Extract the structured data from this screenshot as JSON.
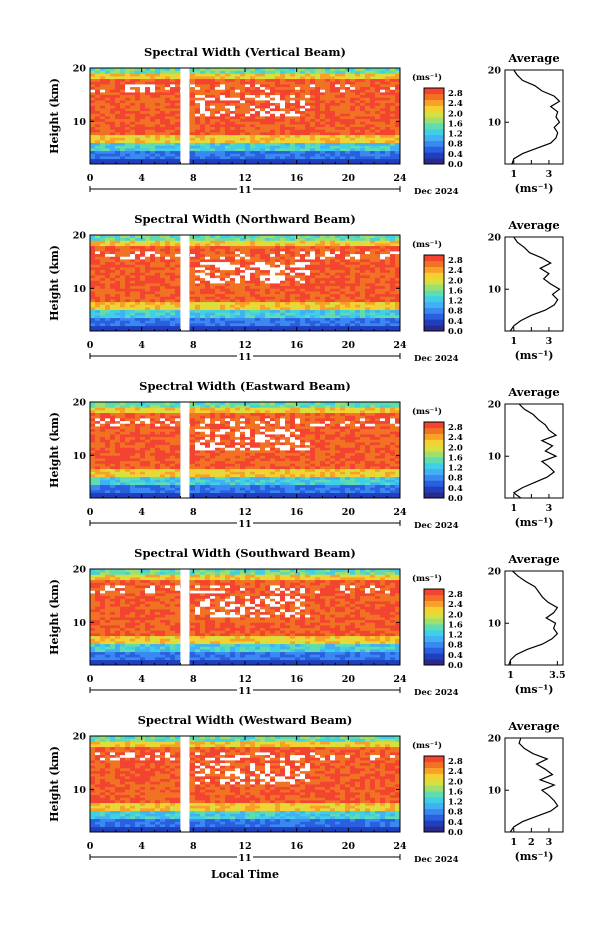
{
  "figure": {
    "xlabel": "Local Time",
    "day_label": "11",
    "date_label": "Dec 2024"
  },
  "colorbar": {
    "unit_label": "(ms⁻¹)",
    "range": [
      0.0,
      3.0
    ],
    "tick_labels": [
      "0.0",
      "0.4",
      "0.8",
      "1.2",
      "1.6",
      "2.0",
      "2.4",
      "2.8"
    ],
    "tick_values": [
      0.0,
      0.4,
      0.8,
      1.2,
      1.6,
      2.0,
      2.4,
      2.8
    ],
    "colors": [
      "#2a2a8c",
      "#1f3fbf",
      "#2a60e0",
      "#3a88f2",
      "#42b0f5",
      "#3fd0e6",
      "#5fdcb0",
      "#9ee070",
      "#d8e040",
      "#f6d030",
      "#f8a028",
      "#f27224",
      "#f24430"
    ]
  },
  "chart_data": [
    {
      "type": "heatmap",
      "title": "Spectral Width (Vertical Beam)",
      "xlabel": "",
      "ylabel": "Height (km)",
      "x_ticks": [
        0,
        4,
        8,
        12,
        16,
        20,
        24
      ],
      "x_range": [
        0,
        24
      ],
      "y_ticks": [
        10,
        20
      ],
      "y_range": [
        2,
        20
      ],
      "gaps_hours": [
        [
          7.0,
          7.7
        ]
      ],
      "average_profile": {
        "title": "Average",
        "xlabel": "(ms⁻¹)",
        "x_ticks": [
          1,
          2,
          3
        ],
        "x_ticks_labeled": [
          1,
          3
        ],
        "x_range": [
          0.5,
          3.8
        ],
        "height_km": [
          2,
          3,
          4,
          5,
          6,
          7,
          8,
          9,
          10,
          11,
          12,
          13,
          14,
          15,
          16,
          17,
          18,
          19,
          20
        ],
        "width_ms": [
          0.9,
          1.0,
          1.5,
          2.3,
          3.1,
          3.4,
          3.5,
          3.3,
          3.6,
          3.4,
          3.5,
          3.1,
          3.6,
          3.3,
          2.6,
          2.2,
          1.5,
          1.2,
          1.0
        ]
      }
    },
    {
      "type": "heatmap",
      "title": "Spectral Width (Northward Beam)",
      "xlabel": "",
      "ylabel": "Height (km)",
      "x_ticks": [
        0,
        4,
        8,
        12,
        16,
        20,
        24
      ],
      "x_range": [
        0,
        24
      ],
      "y_ticks": [
        10,
        20
      ],
      "y_range": [
        2,
        20
      ],
      "gaps_hours": [
        [
          7.0,
          7.7
        ]
      ],
      "average_profile": {
        "title": "Average",
        "xlabel": "(ms⁻¹)",
        "x_ticks": [
          1,
          2,
          3
        ],
        "x_ticks_labeled": [
          1,
          3
        ],
        "x_range": [
          0.5,
          3.8
        ],
        "height_km": [
          2,
          3,
          4,
          5,
          6,
          7,
          8,
          9,
          10,
          11,
          12,
          13,
          14,
          15,
          16,
          17,
          18,
          19,
          20
        ],
        "width_ms": [
          0.8,
          1.0,
          1.4,
          2.0,
          2.8,
          3.3,
          3.5,
          3.2,
          3.6,
          3.1,
          2.7,
          3.0,
          2.5,
          3.1,
          2.6,
          1.9,
          1.6,
          1.2,
          1.0
        ]
      }
    },
    {
      "type": "heatmap",
      "title": "Spectral Width (Eastward Beam)",
      "xlabel": "",
      "ylabel": "Height (km)",
      "x_ticks": [
        0,
        4,
        8,
        12,
        16,
        20,
        24
      ],
      "x_range": [
        0,
        24
      ],
      "y_ticks": [
        10,
        20
      ],
      "y_range": [
        2,
        20
      ],
      "gaps_hours": [
        [
          7.0,
          7.7
        ]
      ],
      "average_profile": {
        "title": "Average",
        "xlabel": "(ms⁻¹)",
        "x_ticks": [
          1,
          2,
          3
        ],
        "x_ticks_labeled": [
          1,
          3
        ],
        "x_range": [
          0.5,
          3.8
        ],
        "height_km": [
          2,
          3,
          4,
          5,
          6,
          7,
          8,
          9,
          10,
          11,
          12,
          13,
          14,
          15,
          16,
          17,
          18,
          19,
          20
        ],
        "width_ms": [
          1.4,
          1.0,
          1.5,
          2.2,
          2.9,
          3.3,
          3.0,
          2.6,
          3.4,
          2.8,
          3.2,
          2.6,
          3.4,
          3.0,
          2.8,
          2.4,
          2.1,
          1.6,
          1.3
        ]
      }
    },
    {
      "type": "heatmap",
      "title": "Spectral Width (Southward Beam)",
      "xlabel": "",
      "ylabel": "Height (km)",
      "x_ticks": [
        0,
        4,
        8,
        12,
        16,
        20,
        24
      ],
      "x_range": [
        0,
        24
      ],
      "y_ticks": [
        10,
        20
      ],
      "y_range": [
        2,
        20
      ],
      "gaps_hours": [
        [
          7.0,
          7.7
        ]
      ],
      "average_profile": {
        "title": "Average",
        "xlabel": "(ms⁻¹)",
        "x_ticks": [
          1.0,
          3.5
        ],
        "x_ticks_labeled": [
          1.0,
          3.5
        ],
        "x_range": [
          0.7,
          3.8
        ],
        "height_km": [
          2,
          3,
          4,
          5,
          6,
          7,
          8,
          9,
          10,
          11,
          12,
          13,
          14,
          15,
          16,
          17,
          18,
          19,
          20
        ],
        "width_ms": [
          0.9,
          1.0,
          1.3,
          1.9,
          2.7,
          3.2,
          3.5,
          3.3,
          3.4,
          2.9,
          3.3,
          3.5,
          3.0,
          2.7,
          2.5,
          2.3,
          1.8,
          1.4,
          1.1
        ]
      }
    },
    {
      "type": "heatmap",
      "title": "Spectral Width (Westward Beam)",
      "xlabel": "Local Time",
      "ylabel": "Height (km)",
      "x_ticks": [
        0,
        4,
        8,
        12,
        16,
        20,
        24
      ],
      "x_range": [
        0,
        24
      ],
      "y_ticks": [
        10,
        20
      ],
      "y_range": [
        2,
        20
      ],
      "gaps_hours": [
        [
          7.0,
          7.7
        ]
      ],
      "average_profile": {
        "title": "Average",
        "xlabel": "(ms⁻¹)",
        "x_ticks": [
          1,
          2,
          3
        ],
        "x_ticks_labeled": [
          1,
          2,
          3
        ],
        "x_range": [
          0.5,
          3.8
        ],
        "height_km": [
          2,
          3,
          4,
          5,
          6,
          7,
          8,
          9,
          10,
          11,
          12,
          13,
          14,
          15,
          16,
          17,
          18,
          19,
          20
        ],
        "width_ms": [
          0.8,
          1.0,
          1.5,
          2.3,
          3.1,
          3.5,
          3.3,
          3.0,
          2.6,
          3.3,
          2.5,
          3.2,
          2.8,
          2.3,
          2.9,
          2.1,
          1.6,
          1.3,
          1.4
        ]
      }
    }
  ]
}
